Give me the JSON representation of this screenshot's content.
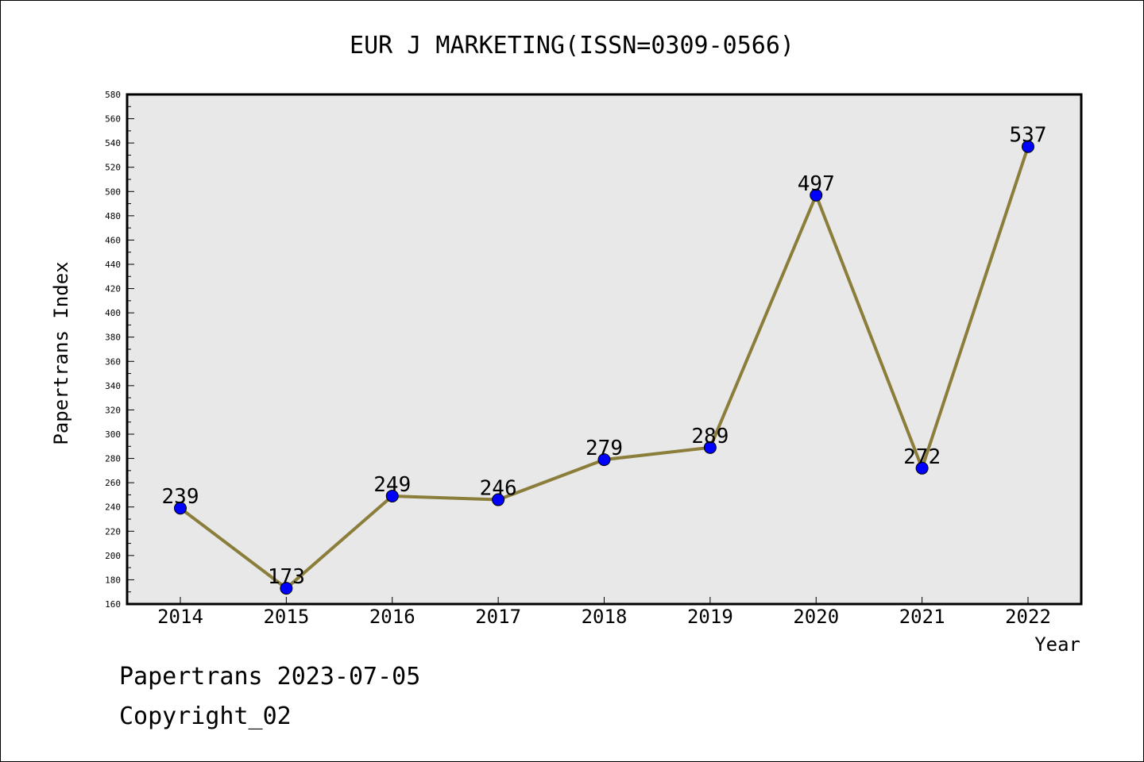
{
  "chart_data": {
    "type": "line",
    "title": "EUR J MARKETING(ISSN=0309-0566)",
    "xlabel": "Year",
    "ylabel": "Papertrans Index",
    "categories": [
      "2014",
      "2015",
      "2016",
      "2017",
      "2018",
      "2019",
      "2020",
      "2021",
      "2022"
    ],
    "series": [
      {
        "values": [
          239,
          173,
          249,
          246,
          279,
          289,
          497,
          272,
          537
        ],
        "line_color": "#8b7d3a",
        "marker_color": "#0000ff"
      }
    ],
    "ylim": [
      160,
      580
    ],
    "yticks": [
      "160",
      "180",
      "200",
      "220",
      "240",
      "260",
      "280",
      "300",
      "320",
      "340",
      "360",
      "380",
      "400",
      "420",
      "440",
      "460",
      "480",
      "500",
      "520",
      "540",
      "560",
      "580"
    ],
    "data_labels": [
      "239",
      "173",
      "249",
      "246",
      "279",
      "289",
      "497",
      "272",
      "537"
    ],
    "plot_background": "#e8e8e8",
    "grid": false,
    "legend": "none"
  },
  "footer": {
    "date_text": "Papertrans 2023-07-05",
    "copyright_text": "Copyright_02"
  }
}
